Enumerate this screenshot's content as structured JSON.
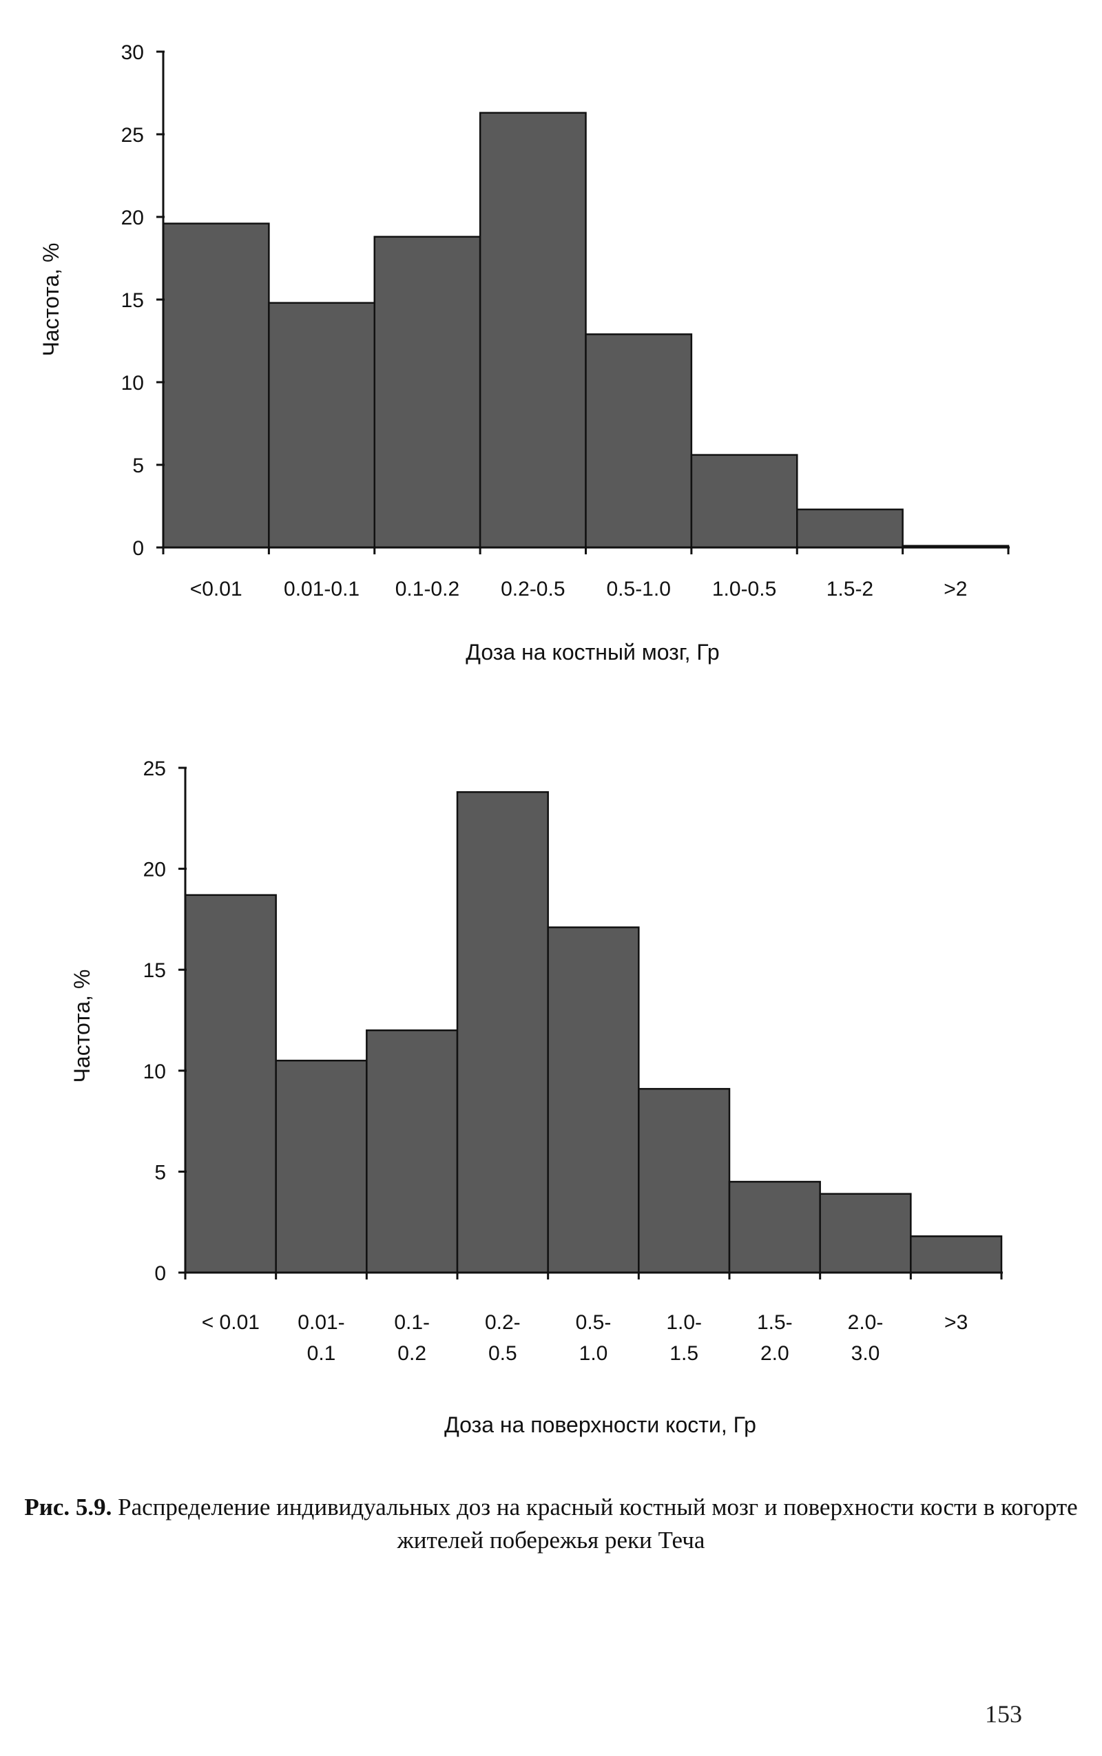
{
  "chart_data": [
    {
      "type": "bar",
      "ylabel": "Частота, %",
      "xlabel": "Доза на костный мозг, Гр",
      "categories": [
        "<0.01",
        "0.01-0.1",
        "0.1-0.2",
        "0.2-0.5",
        "0.5-1.0",
        "1.0-0.5",
        "1.5-2",
        ">2"
      ],
      "values": [
        19.6,
        14.8,
        18.8,
        26.3,
        12.9,
        5.6,
        2.3,
        0.1
      ],
      "yticks": [
        0,
        5,
        10,
        15,
        20,
        25,
        30
      ],
      "ylim": [
        0,
        30
      ],
      "grid": false,
      "bar_color": "#5a5a5a"
    },
    {
      "type": "bar",
      "ylabel": "Частота, %",
      "xlabel": "Доза на поверхности кости, Гр",
      "categories": [
        [
          "< 0.01"
        ],
        [
          "0.01-",
          "0.1"
        ],
        [
          "0.1-",
          "0.2"
        ],
        [
          "0.2-",
          "0.5"
        ],
        [
          "0.5-",
          "1.0"
        ],
        [
          "1.0-",
          "1.5"
        ],
        [
          "1.5-",
          "2.0"
        ],
        [
          "2.0-",
          "3.0"
        ],
        [
          ">3"
        ]
      ],
      "values": [
        18.7,
        10.5,
        12.0,
        23.8,
        17.1,
        9.1,
        4.5,
        3.9,
        1.8
      ],
      "yticks": [
        0,
        5,
        10,
        15,
        20,
        25
      ],
      "ylim": [
        0,
        25
      ],
      "grid": false,
      "bar_color": "#5a5a5a"
    }
  ],
  "caption": {
    "label": "Рис. 5.9.",
    "text": " Распределение индивидуальных доз на красный костный мозг и поверхности кости в когорте жителей побережья реки Теча"
  },
  "page_number": "153"
}
